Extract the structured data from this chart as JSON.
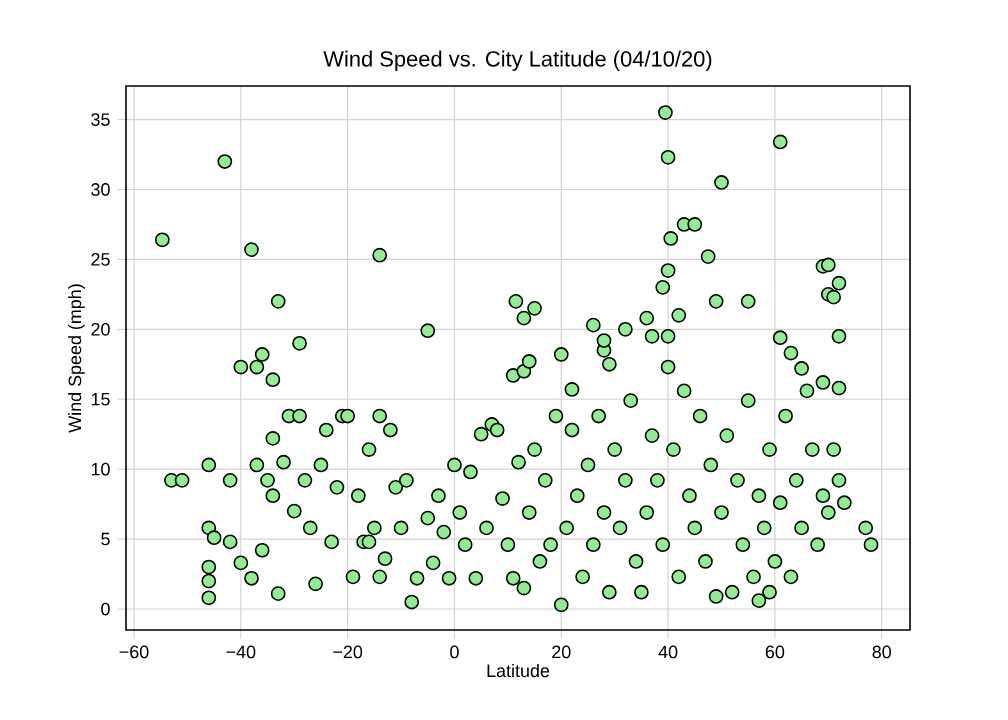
{
  "chart_data": {
    "type": "scatter",
    "title": "Wind Speed vs. City Latitude (04/10/20)",
    "xlabel": "Latitude",
    "ylabel": "Wind Speed (mph)",
    "xlim": [
      -61.5,
      85.3
    ],
    "ylim": [
      -1.5,
      37.4
    ],
    "xticks": [
      {
        "value": -60,
        "label": "−60"
      },
      {
        "value": -40,
        "label": "−40"
      },
      {
        "value": -20,
        "label": "−20"
      },
      0,
      20,
      40,
      60,
      80
    ],
    "yticks": [
      0,
      5,
      10,
      15,
      20,
      25,
      30,
      35
    ],
    "grid": true,
    "series": [
      {
        "color": "#90ee90",
        "x": [
          -54.7,
          -43,
          -38,
          -40,
          -37,
          -36,
          -34,
          -33,
          -29,
          -14,
          -5,
          39.5,
          40,
          61,
          50,
          40.5,
          43,
          45,
          47.5,
          40,
          39,
          42,
          11.5,
          13,
          15,
          11,
          13,
          14,
          20,
          22,
          26,
          28,
          28,
          29,
          32,
          36,
          37,
          40,
          49,
          55,
          61,
          63,
          65,
          69,
          70,
          70,
          71,
          72,
          72,
          69,
          72,
          -53,
          -51,
          -46,
          -46,
          -45,
          -46,
          -46,
          -46,
          -42,
          -42,
          -40,
          -38,
          -37,
          -36,
          -35,
          -34,
          -34,
          -33,
          -32,
          -31,
          -30,
          -29,
          -28,
          -27,
          -26,
          -25,
          -24,
          -23,
          -22,
          -21,
          -20,
          -19,
          -18,
          -17,
          -16,
          -15,
          -14,
          -13,
          -12,
          -11,
          -10,
          -9,
          -8,
          -7,
          -5,
          -4,
          -3,
          -2,
          -1,
          0,
          1,
          2,
          3,
          4,
          5,
          6,
          7,
          8,
          9,
          10,
          11,
          12,
          13,
          14,
          15,
          16,
          17,
          18,
          19,
          20,
          21,
          22,
          23,
          24,
          25,
          26,
          27,
          28,
          29,
          30,
          31,
          32,
          33,
          34,
          35,
          36,
          37,
          38,
          39,
          40,
          41,
          42,
          43,
          44,
          45,
          46,
          47,
          48,
          49,
          50,
          51,
          52,
          53,
          54,
          55,
          56,
          57,
          58,
          59,
          60,
          61,
          62,
          63,
          64,
          65,
          66,
          67,
          68,
          69,
          70,
          71,
          72,
          73,
          77,
          78,
          57,
          59,
          -14,
          -16
        ],
        "values": [
          26.4,
          32,
          25.7,
          17.3,
          17.3,
          18.2,
          16.4,
          22,
          19,
          25.3,
          19.9,
          35.5,
          32.3,
          33.4,
          30.5,
          26.5,
          27.5,
          27.5,
          25.2,
          24.2,
          23,
          21,
          22,
          20.8,
          21.5,
          16.7,
          17,
          17.7,
          18.2,
          15.7,
          20.3,
          18.5,
          19.2,
          17.5,
          20,
          20.8,
          19.5,
          19.5,
          22,
          22,
          19.4,
          18.3,
          17.2,
          24.5,
          24.6,
          22.5,
          22.3,
          23.3,
          19.5,
          16.2,
          15.8,
          9.2,
          9.2,
          10.3,
          5.8,
          5.1,
          3,
          2,
          0.8,
          4.8,
          9.2,
          3.3,
          2.2,
          10.3,
          4.2,
          9.2,
          8.1,
          12.2,
          1.1,
          10.5,
          13.8,
          7,
          13.8,
          9.2,
          5.8,
          1.8,
          10.3,
          12.8,
          4.8,
          8.7,
          13.8,
          13.8,
          2.3,
          8.1,
          4.8,
          11.4,
          5.8,
          13.8,
          3.6,
          12.8,
          8.7,
          5.8,
          9.2,
          0.5,
          2.2,
          6.5,
          3.3,
          8.1,
          5.5,
          2.2,
          10.3,
          6.9,
          4.6,
          9.8,
          2.2,
          12.5,
          5.8,
          13.2,
          12.8,
          7.9,
          4.6,
          2.2,
          10.5,
          1.5,
          6.9,
          11.4,
          3.4,
          9.2,
          4.6,
          13.8,
          0.3,
          5.8,
          12.8,
          8.1,
          2.3,
          10.3,
          4.6,
          13.8,
          6.9,
          1.2,
          11.4,
          5.8,
          9.2,
          14.9,
          3.4,
          1.2,
          6.9,
          12.4,
          9.2,
          4.6,
          17.3,
          11.4,
          2.3,
          15.6,
          8.1,
          5.8,
          13.8,
          3.4,
          10.3,
          0.9,
          6.9,
          12.4,
          1.2,
          9.2,
          4.6,
          14.9,
          2.3,
          8.1,
          5.8,
          11.4,
          3.4,
          7.6,
          13.8,
          2.3,
          9.2,
          5.8,
          15.6,
          11.4,
          4.6,
          8.1,
          6.9,
          11.4,
          9.2,
          7.6,
          5.8,
          4.6,
          0.6,
          1.2,
          2.3,
          4.8
        ]
      }
    ]
  }
}
